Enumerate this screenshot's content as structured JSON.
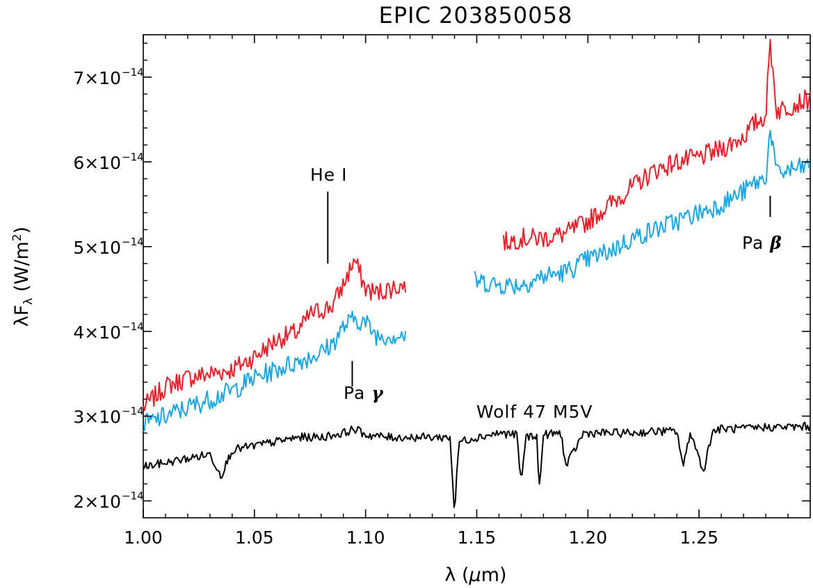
{
  "chart_data": {
    "type": "line",
    "title": "EPIC 203850058",
    "xlabel": "λ (μm)",
    "ylabel": "λFλ (W/m²)",
    "xlim": [
      1.0,
      1.3
    ],
    "ylim": [
      1.8e-14,
      7.5e-14
    ],
    "x_ticks": [
      1.0,
      1.05,
      1.1,
      1.15,
      1.2,
      1.25
    ],
    "x_tick_labels": [
      "1.00",
      "1.05",
      "1.10",
      "1.15",
      "1.20",
      "1.25"
    ],
    "y_ticks": [
      2e-14,
      3e-14,
      4e-14,
      5e-14,
      6e-14,
      7e-14
    ],
    "y_tick_labels": [
      {
        "mantissa": "2×10",
        "exponent": "−14"
      },
      {
        "mantissa": "3×10",
        "exponent": "−14"
      },
      {
        "mantissa": "4×10",
        "exponent": "−14"
      },
      {
        "mantissa": "5×10",
        "exponent": "−14"
      },
      {
        "mantissa": "6×10",
        "exponent": "−14"
      },
      {
        "mantissa": "7×10",
        "exponent": "−14"
      }
    ],
    "grid": false,
    "legend": "none",
    "series": [
      {
        "color": "#e8202a",
        "segments": [
          {
            "x": [
              1.0,
              1.01,
              1.02,
              1.03,
              1.04,
              1.05,
              1.06,
              1.07,
              1.075,
              1.08,
              1.085,
              1.09,
              1.095,
              1.1,
              1.105,
              1.11,
              1.118
            ],
            "y": [
              3.1e-14,
              3.35e-14,
              3.45e-14,
              3.5e-14,
              3.55e-14,
              3.7e-14,
              3.9e-14,
              4e-14,
              4.2e-14,
              4.25e-14,
              4.3e-14,
              4.55e-14,
              4.85e-14,
              4.5e-14,
              4.45e-14,
              4.5e-14,
              4.55e-14
            ]
          },
          {
            "x": [
              1.162,
              1.17,
              1.18,
              1.19,
              1.2,
              1.21,
              1.22,
              1.23,
              1.24,
              1.25,
              1.26,
              1.27,
              1.275,
              1.28,
              1.282,
              1.285,
              1.29,
              1.3
            ],
            "y": [
              5.05e-14,
              5.1e-14,
              5.1e-14,
              5.15e-14,
              5.3e-14,
              5.5e-14,
              5.7e-14,
              5.9e-14,
              6e-14,
              6.05e-14,
              6.15e-14,
              6.3e-14,
              6.45e-14,
              6.55e-14,
              7.4e-14,
              6.6e-14,
              6.65e-14,
              6.75e-14
            ]
          }
        ]
      },
      {
        "color": "#1aa6e4",
        "segments": [
          {
            "x": [
              1.0,
              1.01,
              1.02,
              1.03,
              1.04,
              1.05,
              1.06,
              1.07,
              1.08,
              1.085,
              1.09,
              1.095,
              1.1,
              1.105,
              1.11,
              1.118
            ],
            "y": [
              2.9e-14,
              3e-14,
              3.1e-14,
              3.2e-14,
              3.3e-14,
              3.45e-14,
              3.55e-14,
              3.65e-14,
              3.75e-14,
              3.85e-14,
              4.05e-14,
              4.15e-14,
              4.1e-14,
              3.95e-14,
              3.95e-14,
              3.95e-14
            ]
          },
          {
            "x": [
              1.149,
              1.16,
              1.17,
              1.18,
              1.19,
              1.2,
              1.21,
              1.22,
              1.23,
              1.24,
              1.25,
              1.26,
              1.27,
              1.275,
              1.28,
              1.282,
              1.285,
              1.29,
              1.3
            ],
            "y": [
              4.6e-14,
              4.55e-14,
              4.55e-14,
              4.65e-14,
              4.7e-14,
              4.85e-14,
              4.95e-14,
              5.1e-14,
              5.2e-14,
              5.3e-14,
              5.4e-14,
              5.5e-14,
              5.65e-14,
              5.75e-14,
              5.8e-14,
              6.4e-14,
              5.85e-14,
              5.9e-14,
              5.95e-14
            ]
          }
        ]
      },
      {
        "color": "#000000",
        "segments": [
          {
            "x": [
              1.0,
              1.01,
              1.02,
              1.03,
              1.035,
              1.04,
              1.05,
              1.06,
              1.07,
              1.08,
              1.09,
              1.095,
              1.1,
              1.11,
              1.12,
              1.13,
              1.138,
              1.14,
              1.142,
              1.15,
              1.16,
              1.168,
              1.17,
              1.172,
              1.177,
              1.178,
              1.18,
              1.188,
              1.19,
              1.198,
              1.2,
              1.21,
              1.22,
              1.23,
              1.24,
              1.243,
              1.246,
              1.252,
              1.256,
              1.26,
              1.27,
              1.28,
              1.29,
              1.3
            ],
            "y": [
              2.4e-14,
              2.45e-14,
              2.5e-14,
              2.55e-14,
              2.3e-14,
              2.6e-14,
              2.65e-14,
              2.7e-14,
              2.75e-14,
              2.75e-14,
              2.8e-14,
              2.85e-14,
              2.78e-14,
              2.75e-14,
              2.75e-14,
              2.75e-14,
              2.75e-14,
              1.85e-14,
              2.7e-14,
              2.75e-14,
              2.8e-14,
              2.78e-14,
              2.2e-14,
              2.75e-14,
              2.78e-14,
              2.1e-14,
              2.78e-14,
              2.8e-14,
              2.4e-14,
              2.8e-14,
              2.8e-14,
              2.8e-14,
              2.8e-14,
              2.82e-14,
              2.82e-14,
              2.4e-14,
              2.82e-14,
              2.35e-14,
              2.82e-14,
              2.85e-14,
              2.85e-14,
              2.87e-14,
              2.87e-14,
              2.88e-14
            ]
          }
        ]
      }
    ],
    "annotations": [
      {
        "text": "He I",
        "tick_x": 1.083,
        "tick_y": [
          4.8e-14,
          5.65e-14
        ]
      },
      {
        "text": "Pa γ",
        "tick_x": 1.094,
        "tick_y": [
          3.35e-14,
          3.65e-14
        ]
      },
      {
        "text": "Pa β",
        "tick_x": 1.282,
        "tick_y": [
          5.35e-14,
          5.6e-14
        ]
      },
      {
        "text": "Wolf 47 M5V"
      }
    ]
  }
}
